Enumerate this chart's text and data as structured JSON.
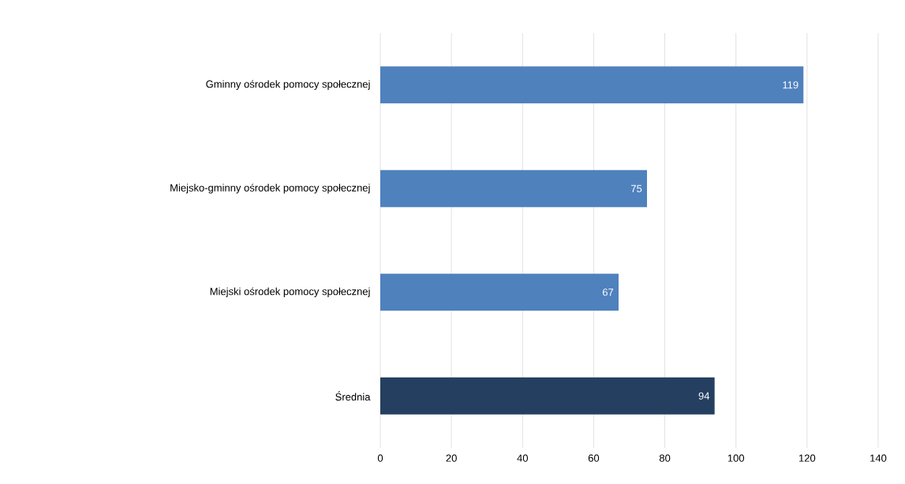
{
  "chart_data": {
    "type": "bar",
    "orientation": "horizontal",
    "categories": [
      "Gminny ośrodek pomocy społecznej",
      "Miejsko-gminny ośrodek pomocy społecznej",
      "Miejski ośrodek pomocy społecznej",
      "Średnia"
    ],
    "values": [
      119,
      75,
      67,
      94
    ],
    "colors": [
      "#4f81bd",
      "#4f81bd",
      "#4f81bd",
      "#243f60"
    ],
    "xlim": [
      0,
      140
    ],
    "xticks": [
      0,
      20,
      40,
      60,
      80,
      100,
      120,
      140
    ],
    "grid": "x",
    "data_labels": true
  }
}
